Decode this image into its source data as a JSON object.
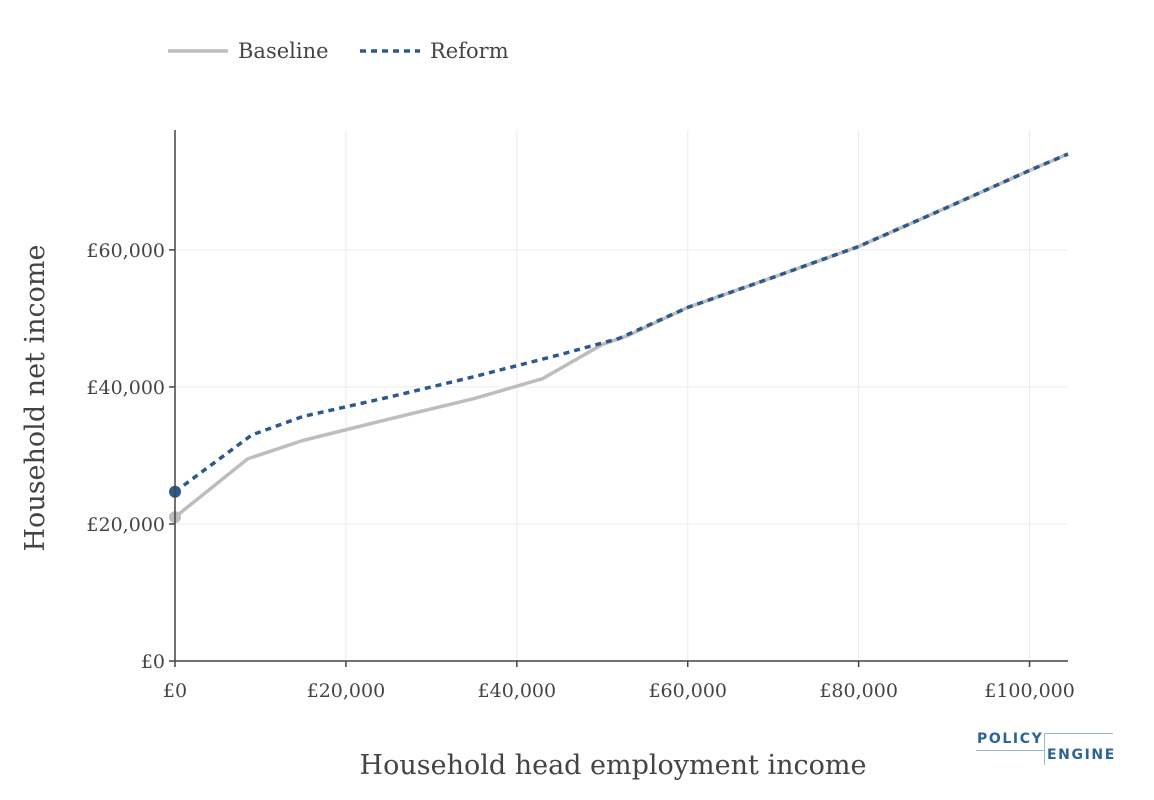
{
  "chart_data": {
    "type": "line",
    "xlabel": "Household head employment income",
    "ylabel": "Household net income",
    "xlim": [
      0,
      104500
    ],
    "ylim": [
      0,
      77500
    ],
    "xticks": [
      0,
      20000,
      40000,
      60000,
      80000,
      100000
    ],
    "xtick_labels": [
      "£0",
      "£20,000",
      "£40,000",
      "£60,000",
      "£80,000",
      "£100,000"
    ],
    "yticks": [
      0,
      20000,
      40000,
      60000
    ],
    "ytick_labels": [
      "£0",
      "£20,000",
      "£40,000",
      "£60,000"
    ],
    "grid": true,
    "legend_position": "top-left",
    "series": [
      {
        "name": "Baseline",
        "color": "#bdbdbd",
        "style": "solid",
        "x": [
          0,
          8500,
          15000,
          25000,
          35000,
          43000,
          50000,
          53000,
          60000,
          70000,
          80000,
          90000,
          100000,
          104500
        ],
        "y": [
          21000,
          29500,
          32200,
          35300,
          38300,
          41200,
          46200,
          47500,
          51600,
          56000,
          60500,
          66000,
          71600,
          74000
        ],
        "marker_at": 0
      },
      {
        "name": "Reform",
        "color": "#2c5a8c",
        "style": "dotted",
        "x": [
          0,
          9000,
          15000,
          25000,
          35000,
          45000,
          52000,
          60000,
          70000,
          80000,
          90000,
          100000,
          104500
        ],
        "y": [
          24700,
          33000,
          35700,
          38500,
          41500,
          44700,
          47100,
          51600,
          56000,
          60500,
          66000,
          71600,
          74000
        ],
        "marker_at": 0
      }
    ]
  },
  "logo": {
    "top": "POLICY",
    "bottom": "ENGINE"
  }
}
